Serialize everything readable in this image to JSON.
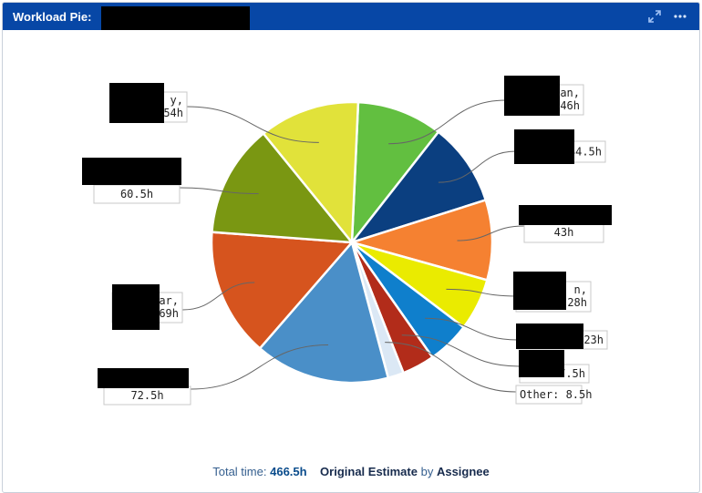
{
  "header": {
    "title_label": "Workload Pie:",
    "actions": [
      {
        "name": "expand-icon",
        "icon": "expand-arrows-icon"
      },
      {
        "name": "more-icon",
        "icon": "ellipsis-icon"
      }
    ]
  },
  "chart_data": {
    "type": "pie",
    "unit": "h",
    "slices": [
      {
        "label_visible": "an,",
        "value": 46,
        "value_label": "46h",
        "color": "#62bf40"
      },
      {
        "label_visible": "",
        "value": 44.5,
        "value_label": "44.5h",
        "color": "#0b3f80"
      },
      {
        "label_visible": "",
        "value": 43,
        "value_label": "43h",
        "color": "#f58131"
      },
      {
        "label_visible": "n,",
        "value": 28,
        "value_label": "28h",
        "color": "#eaeb00"
      },
      {
        "label_visible": "",
        "value": 23,
        "value_label": "23h",
        "color": "#0f7fcc"
      },
      {
        "label_visible": "",
        "value": 17.5,
        "value_label": "17.5h",
        "color": "#b22c1a"
      },
      {
        "label_visible": "Other:",
        "value": 8.5,
        "value_label": "8.5h",
        "color": "#dbe8f5"
      },
      {
        "label_visible": "",
        "value": 72.5,
        "value_label": "72.5h",
        "color": "#4a8fc8"
      },
      {
        "label_visible": "ar,",
        "value": 69,
        "value_label": "69h",
        "color": "#d6541e"
      },
      {
        "label_visible": "",
        "value": 60.5,
        "value_label": "60.5h",
        "color": "#7a9712"
      },
      {
        "label_visible": "y,",
        "value": 54,
        "value_label": "54h",
        "color": "#e1e23a"
      }
    ]
  },
  "footer": {
    "total_label": "Total time:",
    "total_value": "466.5h",
    "field": "Original Estimate",
    "by": "by",
    "group": "Assignee"
  }
}
